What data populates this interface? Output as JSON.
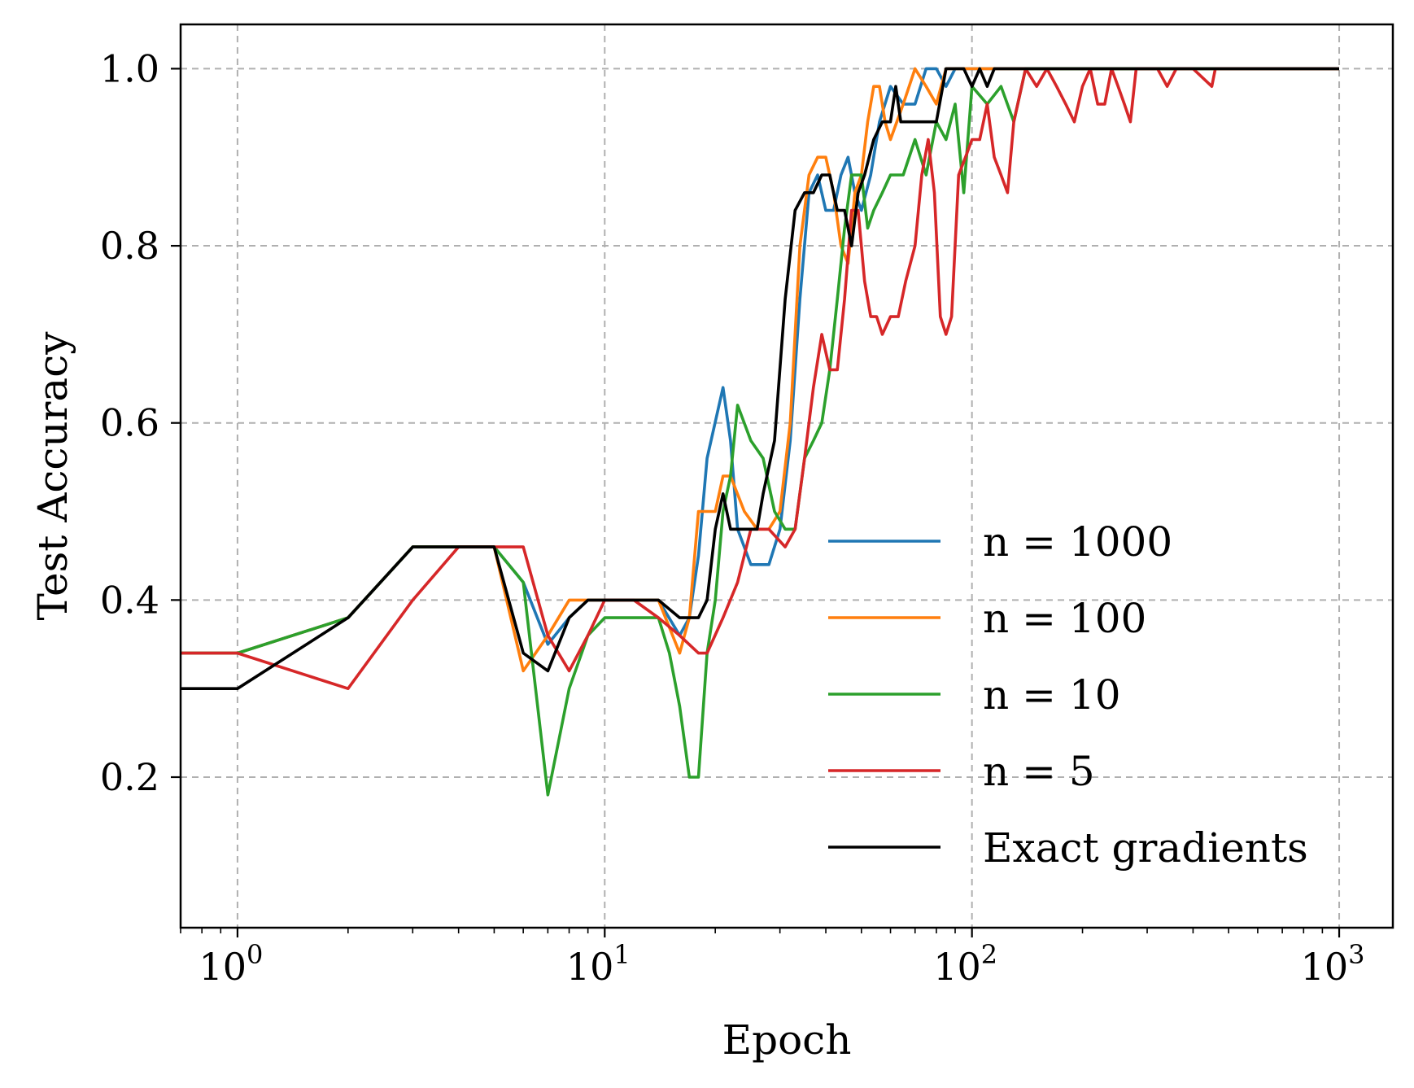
{
  "chart_data": {
    "type": "line",
    "title": "",
    "xlabel": "Epoch",
    "ylabel": "Test Accuracy",
    "xscale": "log",
    "xlim": [
      0.7,
      1400
    ],
    "ylim": [
      0.03,
      1.05
    ],
    "grid": true,
    "legend_position": "lower-right",
    "x_ticks": [
      {
        "value": 1,
        "base": "10",
        "exp": "0"
      },
      {
        "value": 10,
        "base": "10",
        "exp": "1"
      },
      {
        "value": 100,
        "base": "10",
        "exp": "2"
      },
      {
        "value": 1000,
        "base": "10",
        "exp": "3"
      }
    ],
    "y_ticks": [
      {
        "value": 0.2,
        "label": "0.2"
      },
      {
        "value": 0.4,
        "label": "0.4"
      },
      {
        "value": 0.6,
        "label": "0.6"
      },
      {
        "value": 0.8,
        "label": "0.8"
      },
      {
        "value": 1.0,
        "label": "1.0"
      }
    ],
    "series": [
      {
        "name": "n = 1000",
        "color": "#1f77b4",
        "points": [
          [
            0.7,
            0.34
          ],
          [
            1,
            0.34
          ],
          [
            2,
            0.38
          ],
          [
            3,
            0.46
          ],
          [
            4,
            0.46
          ],
          [
            5,
            0.46
          ],
          [
            6,
            0.42
          ],
          [
            7,
            0.35
          ],
          [
            8,
            0.38
          ],
          [
            9,
            0.4
          ],
          [
            10,
            0.4
          ],
          [
            12,
            0.4
          ],
          [
            14,
            0.4
          ],
          [
            16,
            0.36
          ],
          [
            17,
            0.38
          ],
          [
            18,
            0.45
          ],
          [
            19,
            0.56
          ],
          [
            21,
            0.64
          ],
          [
            22,
            0.58
          ],
          [
            23,
            0.48
          ],
          [
            25,
            0.44
          ],
          [
            28,
            0.44
          ],
          [
            30,
            0.48
          ],
          [
            32,
            0.58
          ],
          [
            34,
            0.74
          ],
          [
            36,
            0.86
          ],
          [
            38,
            0.88
          ],
          [
            40,
            0.84
          ],
          [
            42,
            0.84
          ],
          [
            44,
            0.88
          ],
          [
            46,
            0.9
          ],
          [
            48,
            0.86
          ],
          [
            50,
            0.84
          ],
          [
            53,
            0.88
          ],
          [
            56,
            0.94
          ],
          [
            60,
            0.98
          ],
          [
            65,
            0.96
          ],
          [
            70,
            0.96
          ],
          [
            75,
            1.0
          ],
          [
            80,
            1.0
          ],
          [
            85,
            0.98
          ],
          [
            90,
            1.0
          ],
          [
            100,
            1.0
          ],
          [
            1000,
            1.0
          ]
        ]
      },
      {
        "name": "n = 100",
        "color": "#ff7f0e",
        "points": [
          [
            0.7,
            0.34
          ],
          [
            1,
            0.34
          ],
          [
            2,
            0.38
          ],
          [
            3,
            0.46
          ],
          [
            4,
            0.46
          ],
          [
            5,
            0.46
          ],
          [
            6,
            0.32
          ],
          [
            7,
            0.36
          ],
          [
            8,
            0.4
          ],
          [
            9,
            0.4
          ],
          [
            10,
            0.4
          ],
          [
            12,
            0.4
          ],
          [
            14,
            0.4
          ],
          [
            16,
            0.34
          ],
          [
            17,
            0.38
          ],
          [
            18,
            0.5
          ],
          [
            20,
            0.5
          ],
          [
            21,
            0.54
          ],
          [
            22,
            0.54
          ],
          [
            24,
            0.5
          ],
          [
            26,
            0.48
          ],
          [
            28,
            0.48
          ],
          [
            30,
            0.5
          ],
          [
            32,
            0.6
          ],
          [
            34,
            0.8
          ],
          [
            36,
            0.88
          ],
          [
            38,
            0.9
          ],
          [
            40,
            0.9
          ],
          [
            42,
            0.86
          ],
          [
            44,
            0.8
          ],
          [
            46,
            0.78
          ],
          [
            48,
            0.86
          ],
          [
            50,
            0.88
          ],
          [
            52,
            0.94
          ],
          [
            54,
            0.98
          ],
          [
            56,
            0.98
          ],
          [
            58,
            0.94
          ],
          [
            60,
            0.92
          ],
          [
            65,
            0.96
          ],
          [
            70,
            1.0
          ],
          [
            75,
            0.98
          ],
          [
            80,
            0.96
          ],
          [
            85,
            1.0
          ],
          [
            90,
            1.0
          ],
          [
            100,
            1.0
          ],
          [
            1000,
            1.0
          ]
        ]
      },
      {
        "name": "n = 10",
        "color": "#2ca02c",
        "points": [
          [
            0.7,
            0.34
          ],
          [
            1,
            0.34
          ],
          [
            2,
            0.38
          ],
          [
            3,
            0.46
          ],
          [
            4,
            0.46
          ],
          [
            5,
            0.46
          ],
          [
            6,
            0.42
          ],
          [
            7,
            0.18
          ],
          [
            8,
            0.3
          ],
          [
            9,
            0.36
          ],
          [
            10,
            0.38
          ],
          [
            12,
            0.38
          ],
          [
            14,
            0.38
          ],
          [
            15,
            0.34
          ],
          [
            16,
            0.28
          ],
          [
            17,
            0.2
          ],
          [
            18,
            0.2
          ],
          [
            19,
            0.34
          ],
          [
            20,
            0.4
          ],
          [
            21,
            0.5
          ],
          [
            22,
            0.54
          ],
          [
            23,
            0.62
          ],
          [
            25,
            0.58
          ],
          [
            27,
            0.56
          ],
          [
            29,
            0.5
          ],
          [
            31,
            0.48
          ],
          [
            33,
            0.48
          ],
          [
            35,
            0.56
          ],
          [
            37,
            0.58
          ],
          [
            39,
            0.6
          ],
          [
            41,
            0.66
          ],
          [
            43,
            0.74
          ],
          [
            45,
            0.82
          ],
          [
            47,
            0.88
          ],
          [
            50,
            0.88
          ],
          [
            52,
            0.82
          ],
          [
            54,
            0.84
          ],
          [
            57,
            0.86
          ],
          [
            60,
            0.88
          ],
          [
            65,
            0.88
          ],
          [
            70,
            0.92
          ],
          [
            75,
            0.88
          ],
          [
            80,
            0.94
          ],
          [
            85,
            0.92
          ],
          [
            90,
            0.96
          ],
          [
            95,
            0.86
          ],
          [
            100,
            0.98
          ],
          [
            110,
            0.96
          ],
          [
            120,
            0.98
          ],
          [
            130,
            0.94
          ],
          [
            140,
            1.0
          ],
          [
            160,
            1.0
          ],
          [
            1000,
            1.0
          ]
        ]
      },
      {
        "name": "n = 5",
        "color": "#d62728",
        "points": [
          [
            0.7,
            0.34
          ],
          [
            1,
            0.34
          ],
          [
            2,
            0.3
          ],
          [
            3,
            0.4
          ],
          [
            4,
            0.46
          ],
          [
            5,
            0.46
          ],
          [
            6,
            0.46
          ],
          [
            7,
            0.36
          ],
          [
            8,
            0.32
          ],
          [
            9,
            0.36
          ],
          [
            10,
            0.4
          ],
          [
            12,
            0.4
          ],
          [
            14,
            0.38
          ],
          [
            16,
            0.36
          ],
          [
            18,
            0.34
          ],
          [
            19,
            0.34
          ],
          [
            21,
            0.38
          ],
          [
            23,
            0.42
          ],
          [
            25,
            0.48
          ],
          [
            28,
            0.48
          ],
          [
            31,
            0.46
          ],
          [
            33,
            0.48
          ],
          [
            35,
            0.56
          ],
          [
            37,
            0.64
          ],
          [
            39,
            0.7
          ],
          [
            41,
            0.66
          ],
          [
            43,
            0.66
          ],
          [
            45,
            0.74
          ],
          [
            47,
            0.84
          ],
          [
            49,
            0.84
          ],
          [
            51,
            0.76
          ],
          [
            53,
            0.72
          ],
          [
            55,
            0.72
          ],
          [
            57,
            0.7
          ],
          [
            60,
            0.72
          ],
          [
            63,
            0.72
          ],
          [
            66,
            0.76
          ],
          [
            70,
            0.8
          ],
          [
            73,
            0.88
          ],
          [
            76,
            0.92
          ],
          [
            79,
            0.86
          ],
          [
            82,
            0.72
          ],
          [
            85,
            0.7
          ],
          [
            88,
            0.72
          ],
          [
            92,
            0.88
          ],
          [
            96,
            0.9
          ],
          [
            100,
            0.92
          ],
          [
            105,
            0.92
          ],
          [
            110,
            0.96
          ],
          [
            115,
            0.9
          ],
          [
            120,
            0.88
          ],
          [
            125,
            0.86
          ],
          [
            130,
            0.94
          ],
          [
            140,
            1.0
          ],
          [
            150,
            0.98
          ],
          [
            160,
            1.0
          ],
          [
            170,
            0.98
          ],
          [
            180,
            0.96
          ],
          [
            190,
            0.94
          ],
          [
            200,
            0.98
          ],
          [
            210,
            1.0
          ],
          [
            220,
            0.96
          ],
          [
            230,
            0.96
          ],
          [
            240,
            1.0
          ],
          [
            250,
            0.98
          ],
          [
            260,
            0.96
          ],
          [
            270,
            0.94
          ],
          [
            280,
            1.0
          ],
          [
            300,
            1.0
          ],
          [
            320,
            1.0
          ],
          [
            340,
            0.98
          ],
          [
            360,
            1.0
          ],
          [
            400,
            1.0
          ],
          [
            450,
            0.98
          ],
          [
            460,
            1.0
          ],
          [
            1000,
            1.0
          ]
        ]
      },
      {
        "name": "Exact gradients",
        "color": "#000000",
        "points": [
          [
            0.7,
            0.3
          ],
          [
            1,
            0.3
          ],
          [
            2,
            0.38
          ],
          [
            3,
            0.46
          ],
          [
            4,
            0.46
          ],
          [
            5,
            0.46
          ],
          [
            6,
            0.34
          ],
          [
            7,
            0.32
          ],
          [
            8,
            0.38
          ],
          [
            9,
            0.4
          ],
          [
            10,
            0.4
          ],
          [
            12,
            0.4
          ],
          [
            14,
            0.4
          ],
          [
            16,
            0.38
          ],
          [
            18,
            0.38
          ],
          [
            19,
            0.4
          ],
          [
            20,
            0.48
          ],
          [
            21,
            0.52
          ],
          [
            22,
            0.48
          ],
          [
            24,
            0.48
          ],
          [
            26,
            0.48
          ],
          [
            27,
            0.52
          ],
          [
            29,
            0.58
          ],
          [
            31,
            0.74
          ],
          [
            33,
            0.84
          ],
          [
            35,
            0.86
          ],
          [
            37,
            0.86
          ],
          [
            39,
            0.88
          ],
          [
            41,
            0.88
          ],
          [
            43,
            0.84
          ],
          [
            45,
            0.84
          ],
          [
            47,
            0.8
          ],
          [
            49,
            0.86
          ],
          [
            51,
            0.88
          ],
          [
            54,
            0.92
          ],
          [
            57,
            0.94
          ],
          [
            60,
            0.94
          ],
          [
            62,
            0.98
          ],
          [
            64,
            0.94
          ],
          [
            70,
            0.94
          ],
          [
            80,
            0.94
          ],
          [
            85,
            1.0
          ],
          [
            95,
            1.0
          ],
          [
            100,
            0.98
          ],
          [
            105,
            1.0
          ],
          [
            110,
            0.98
          ],
          [
            115,
            1.0
          ],
          [
            1000,
            1.0
          ]
        ]
      }
    ]
  }
}
